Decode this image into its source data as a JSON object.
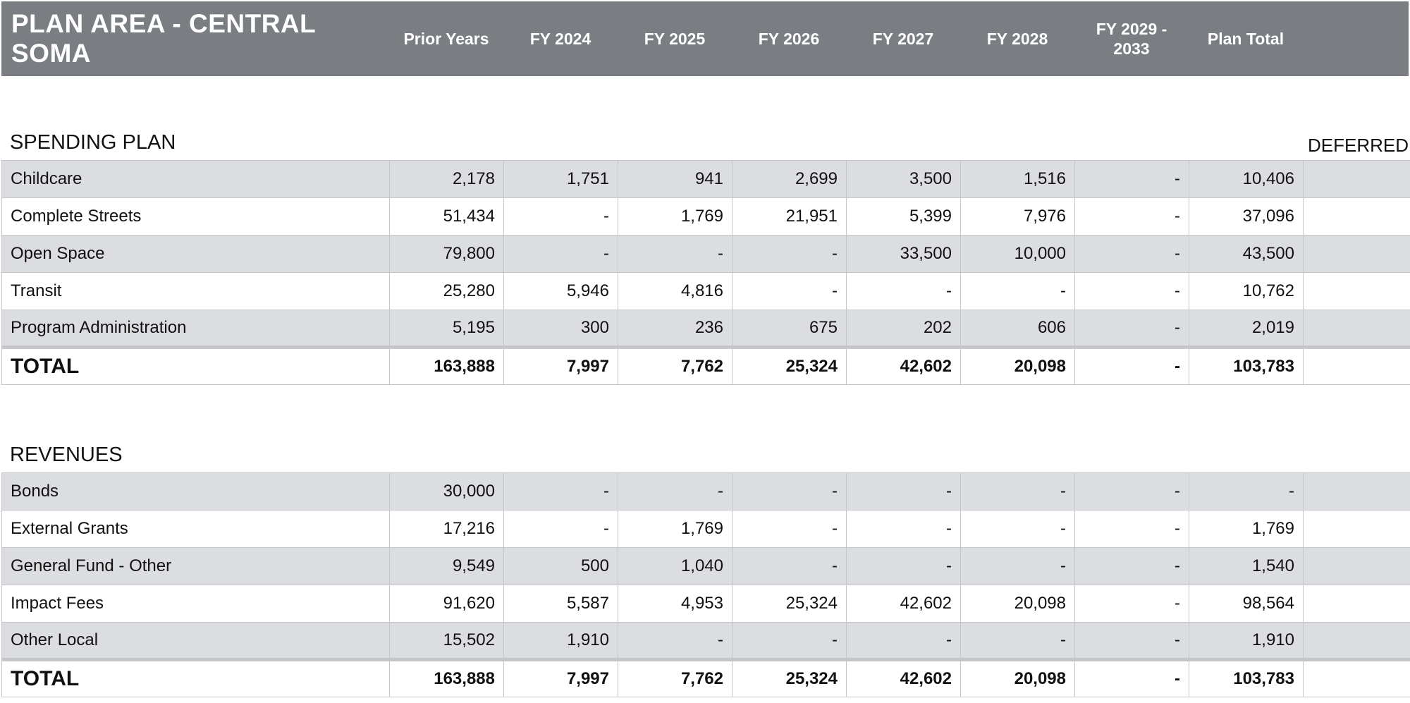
{
  "header": {
    "title": "PLAN AREA - CENTRAL SOMA",
    "columns": [
      "Prior Years",
      "FY 2024",
      "FY 2025",
      "FY 2026",
      "FY 2027",
      "FY 2028",
      "FY 2029 -\n2033",
      "Plan Total"
    ]
  },
  "spending": {
    "title": "SPENDING PLAN",
    "deferred_label": "DEFERRED",
    "rows": [
      {
        "label": "Childcare",
        "values": [
          "2,178",
          "1,751",
          "941",
          "2,699",
          "3,500",
          "1,516",
          "-",
          "10,406"
        ],
        "deferred": ""
      },
      {
        "label": "Complete Streets",
        "values": [
          "51,434",
          "-",
          "1,769",
          "21,951",
          "5,399",
          "7,976",
          "-",
          "37,096"
        ],
        "deferred": ""
      },
      {
        "label": "Open Space",
        "values": [
          "79,800",
          "-",
          "-",
          "-",
          "33,500",
          "10,000",
          "-",
          "43,500"
        ],
        "deferred": ""
      },
      {
        "label": "Transit",
        "values": [
          "25,280",
          "5,946",
          "4,816",
          "-",
          "-",
          "-",
          "-",
          "10,762"
        ],
        "deferred": ""
      },
      {
        "label": "Program Administration",
        "values": [
          "5,195",
          "300",
          "236",
          "675",
          "202",
          "606",
          "-",
          "2,019"
        ],
        "deferred": ""
      }
    ],
    "total": {
      "label": "TOTAL",
      "values": [
        "163,888",
        "7,997",
        "7,762",
        "25,324",
        "42,602",
        "20,098",
        "-",
        "103,783"
      ],
      "deferred": ""
    }
  },
  "revenues": {
    "title": "REVENUES",
    "rows": [
      {
        "label": "Bonds",
        "values": [
          "30,000",
          "-",
          "-",
          "-",
          "-",
          "-",
          "-",
          "-"
        ],
        "deferred": ""
      },
      {
        "label": "External Grants",
        "values": [
          "17,216",
          "-",
          "1,769",
          "-",
          "-",
          "-",
          "-",
          "1,769"
        ],
        "deferred": ""
      },
      {
        "label": "General Fund - Other",
        "values": [
          "9,549",
          "500",
          "1,040",
          "-",
          "-",
          "-",
          "-",
          "1,540"
        ],
        "deferred": ""
      },
      {
        "label": "Impact Fees",
        "values": [
          "91,620",
          "5,587",
          "4,953",
          "25,324",
          "42,602",
          "20,098",
          "-",
          "98,564"
        ],
        "deferred": ""
      },
      {
        "label": "Other Local",
        "values": [
          "15,502",
          "1,910",
          "-",
          "-",
          "-",
          "-",
          "-",
          "1,910"
        ],
        "deferred": ""
      }
    ],
    "total": {
      "label": "TOTAL",
      "values": [
        "163,888",
        "7,997",
        "7,762",
        "25,324",
        "42,602",
        "20,098",
        "-",
        "103,783"
      ],
      "deferred": ""
    }
  }
}
